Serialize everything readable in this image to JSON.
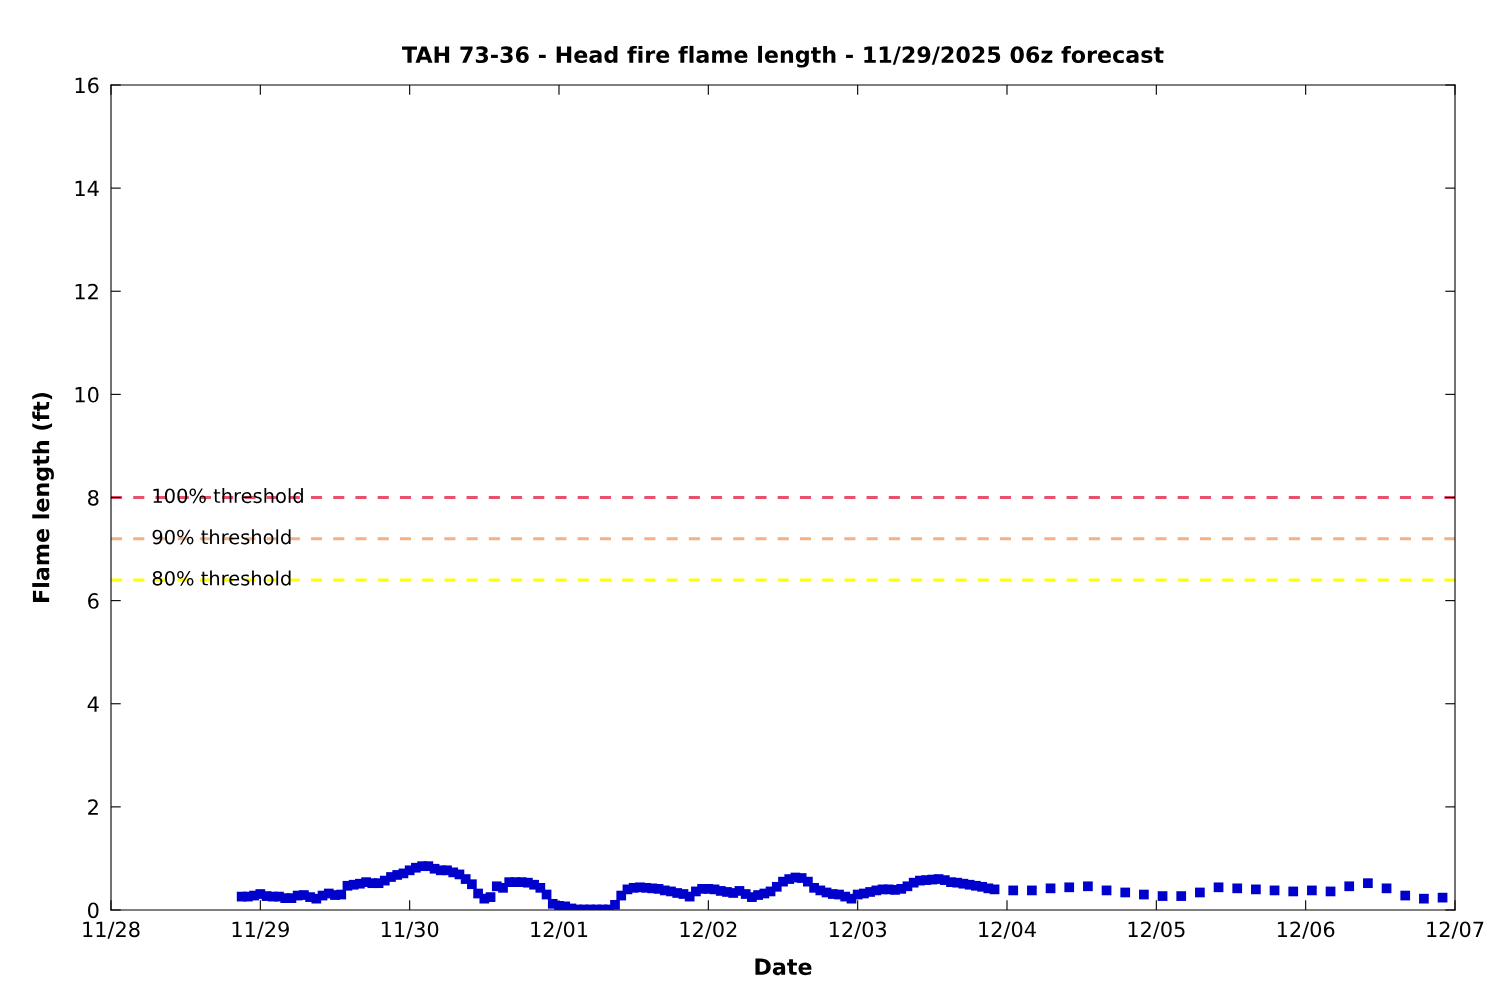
{
  "chart_data": {
    "type": "scatter",
    "title": "TAH 73-36 - Head fire flame length - 11/29/2025 06z forecast",
    "xlabel": "Date",
    "ylabel": "Flame length (ft)",
    "xlim": [
      "2025-11-28",
      "2025-12-07"
    ],
    "xticks": [
      {
        "value": "2025-11-28",
        "label": "11/28"
      },
      {
        "value": "2025-11-29",
        "label": "11/29"
      },
      {
        "value": "2025-11-30",
        "label": "11/30"
      },
      {
        "value": "2025-12-01",
        "label": "12/01"
      },
      {
        "value": "2025-12-02",
        "label": "12/02"
      },
      {
        "value": "2025-12-03",
        "label": "12/03"
      },
      {
        "value": "2025-12-04",
        "label": "12/04"
      },
      {
        "value": "2025-12-05",
        "label": "12/05"
      },
      {
        "value": "2025-12-06",
        "label": "12/06"
      },
      {
        "value": "2025-12-07",
        "label": "12/07"
      }
    ],
    "ylim": [
      0,
      16
    ],
    "yticks": [
      0,
      2,
      4,
      6,
      8,
      10,
      12,
      14,
      16
    ],
    "grid": false,
    "marker": "square",
    "ref_lines": [
      {
        "axis": "y",
        "value": 8,
        "label": "100% threshold",
        "color": "#e8506e",
        "line_style": "dashed"
      },
      {
        "axis": "y",
        "value": 7.2,
        "label": "90% threshold",
        "color": "#f4b183",
        "line_style": "dashed"
      },
      {
        "axis": "y",
        "value": 6.4,
        "label": "80% threshold",
        "color": "#ffff00",
        "line_style": "dashed"
      }
    ],
    "series": [
      {
        "color": "#0000cc",
        "x": [
          "2025-11-28T21:00",
          "2025-11-28T22:00",
          "2025-11-28T23:00",
          "2025-11-29T00:00",
          "2025-11-29T01:00",
          "2025-11-29T02:00",
          "2025-11-29T03:00",
          "2025-11-29T04:00",
          "2025-11-29T05:00",
          "2025-11-29T06:00",
          "2025-11-29T07:00",
          "2025-11-29T08:00",
          "2025-11-29T09:00",
          "2025-11-29T10:00",
          "2025-11-29T11:00",
          "2025-11-29T12:00",
          "2025-11-29T13:00",
          "2025-11-29T14:00",
          "2025-11-29T15:00",
          "2025-11-29T16:00",
          "2025-11-29T17:00",
          "2025-11-29T18:00",
          "2025-11-29T19:00",
          "2025-11-29T20:00",
          "2025-11-29T21:00",
          "2025-11-29T22:00",
          "2025-11-29T23:00",
          "2025-11-30T00:00",
          "2025-11-30T01:00",
          "2025-11-30T02:00",
          "2025-11-30T03:00",
          "2025-11-30T04:00",
          "2025-11-30T05:00",
          "2025-11-30T06:00",
          "2025-11-30T07:00",
          "2025-11-30T08:00",
          "2025-11-30T09:00",
          "2025-11-30T10:00",
          "2025-11-30T11:00",
          "2025-11-30T12:00",
          "2025-11-30T13:00",
          "2025-11-30T14:00",
          "2025-11-30T15:00",
          "2025-11-30T16:00",
          "2025-11-30T17:00",
          "2025-11-30T18:00",
          "2025-11-30T19:00",
          "2025-11-30T20:00",
          "2025-11-30T21:00",
          "2025-11-30T22:00",
          "2025-11-30T23:00",
          "2025-12-01T00:00",
          "2025-12-01T01:00",
          "2025-12-01T02:00",
          "2025-12-01T03:00",
          "2025-12-01T04:00",
          "2025-12-01T05:00",
          "2025-12-01T06:00",
          "2025-12-01T07:00",
          "2025-12-01T08:00",
          "2025-12-01T09:00",
          "2025-12-01T10:00",
          "2025-12-01T11:00",
          "2025-12-01T12:00",
          "2025-12-01T13:00",
          "2025-12-01T14:00",
          "2025-12-01T15:00",
          "2025-12-01T16:00",
          "2025-12-01T17:00",
          "2025-12-01T18:00",
          "2025-12-01T19:00",
          "2025-12-01T20:00",
          "2025-12-01T21:00",
          "2025-12-01T22:00",
          "2025-12-01T23:00",
          "2025-12-02T00:00",
          "2025-12-02T01:00",
          "2025-12-02T02:00",
          "2025-12-02T03:00",
          "2025-12-02T04:00",
          "2025-12-02T05:00",
          "2025-12-02T06:00",
          "2025-12-02T07:00",
          "2025-12-02T08:00",
          "2025-12-02T09:00",
          "2025-12-02T10:00",
          "2025-12-02T11:00",
          "2025-12-02T12:00",
          "2025-12-02T13:00",
          "2025-12-02T14:00",
          "2025-12-02T15:00",
          "2025-12-02T16:00",
          "2025-12-02T17:00",
          "2025-12-02T18:00",
          "2025-12-02T19:00",
          "2025-12-02T20:00",
          "2025-12-02T21:00",
          "2025-12-02T22:00",
          "2025-12-02T23:00",
          "2025-12-03T00:00",
          "2025-12-03T01:00",
          "2025-12-03T02:00",
          "2025-12-03T03:00",
          "2025-12-03T04:00",
          "2025-12-03T05:00",
          "2025-12-03T06:00",
          "2025-12-03T07:00",
          "2025-12-03T08:00",
          "2025-12-03T09:00",
          "2025-12-03T10:00",
          "2025-12-03T11:00",
          "2025-12-03T12:00",
          "2025-12-03T13:00",
          "2025-12-03T14:00",
          "2025-12-03T15:00",
          "2025-12-03T16:00",
          "2025-12-03T17:00",
          "2025-12-03T18:00",
          "2025-12-03T19:00",
          "2025-12-03T20:00",
          "2025-12-03T21:00",
          "2025-12-03T22:00",
          "2025-12-04T01:00",
          "2025-12-04T04:00",
          "2025-12-04T07:00",
          "2025-12-04T10:00",
          "2025-12-04T13:00",
          "2025-12-04T16:00",
          "2025-12-04T19:00",
          "2025-12-04T22:00",
          "2025-12-05T01:00",
          "2025-12-05T04:00",
          "2025-12-05T07:00",
          "2025-12-05T10:00",
          "2025-12-05T13:00",
          "2025-12-05T16:00",
          "2025-12-05T19:00",
          "2025-12-05T22:00",
          "2025-12-06T01:00",
          "2025-12-06T04:00",
          "2025-12-06T07:00",
          "2025-12-06T10:00",
          "2025-12-06T13:00",
          "2025-12-06T16:00",
          "2025-12-06T19:00",
          "2025-12-06T22:00"
        ],
        "values": [
          0.26,
          0.26,
          0.28,
          0.31,
          0.27,
          0.26,
          0.26,
          0.23,
          0.23,
          0.28,
          0.29,
          0.25,
          0.22,
          0.28,
          0.32,
          0.29,
          0.3,
          0.47,
          0.49,
          0.51,
          0.54,
          0.52,
          0.52,
          0.57,
          0.64,
          0.68,
          0.71,
          0.77,
          0.82,
          0.85,
          0.85,
          0.8,
          0.77,
          0.77,
          0.73,
          0.69,
          0.6,
          0.5,
          0.32,
          0.22,
          0.25,
          0.46,
          0.43,
          0.54,
          0.54,
          0.54,
          0.53,
          0.49,
          0.43,
          0.3,
          0.12,
          0.08,
          0.07,
          0.03,
          0.01,
          0.01,
          0.01,
          0.01,
          0.01,
          0.01,
          0.1,
          0.28,
          0.4,
          0.43,
          0.44,
          0.43,
          0.42,
          0.41,
          0.38,
          0.36,
          0.33,
          0.31,
          0.26,
          0.36,
          0.41,
          0.41,
          0.4,
          0.37,
          0.35,
          0.33,
          0.37,
          0.31,
          0.25,
          0.29,
          0.32,
          0.36,
          0.45,
          0.55,
          0.6,
          0.63,
          0.62,
          0.55,
          0.43,
          0.38,
          0.34,
          0.31,
          0.3,
          0.26,
          0.22,
          0.3,
          0.32,
          0.35,
          0.38,
          0.4,
          0.4,
          0.39,
          0.41,
          0.46,
          0.53,
          0.57,
          0.58,
          0.59,
          0.6,
          0.58,
          0.54,
          0.53,
          0.51,
          0.49,
          0.47,
          0.45,
          0.42,
          0.4,
          0.38,
          0.38,
          0.42,
          0.44,
          0.46,
          0.38,
          0.34,
          0.3,
          0.27,
          0.27,
          0.34,
          0.44,
          0.42,
          0.4,
          0.38,
          0.36,
          0.38,
          0.36,
          0.46,
          0.52,
          0.42,
          0.28,
          0.22,
          0.24
        ]
      }
    ]
  }
}
